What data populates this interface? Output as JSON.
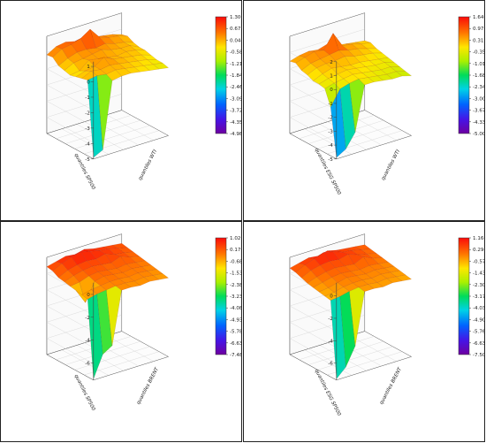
{
  "chart_data": [
    {
      "type": "surface3d",
      "x_label": "quantiles SP500",
      "y_label": "quantiles WTI",
      "z_ticks": [
        "1",
        "0",
        "-1",
        "-2",
        "-3",
        "-4",
        "-5"
      ],
      "z_min": -5,
      "z_max": 1.3,
      "colorbar_ticks": [
        "1.300",
        "0.6720",
        "0.04400",
        "-0.5840",
        "-1.212",
        "-1.840",
        "-2.468",
        "-3.096",
        "-3.724",
        "-4.352",
        "-4.980"
      ],
      "colorbar_min": -4.98,
      "colorbar_max": 1.3,
      "surface": [
        [
          0.1,
          0.45,
          0.55,
          0.4,
          0.5,
          0.3,
          0.2,
          0.1,
          -0.1
        ],
        [
          0.15,
          0.5,
          0.6,
          0.8,
          1.2,
          0.5,
          0.3,
          0.2,
          0.0
        ],
        [
          -0.2,
          0.1,
          0.3,
          0.3,
          0.2,
          0.3,
          0.1,
          0.0,
          -0.2
        ],
        [
          -0.3,
          0.0,
          0.1,
          0.2,
          0.3,
          0.1,
          0.0,
          0.0,
          -0.3
        ],
        [
          -0.4,
          -0.3,
          0.2,
          0.1,
          0.0,
          -0.1,
          0.0,
          -0.1,
          -0.3
        ],
        [
          -0.3,
          -0.1,
          0.0,
          0.4,
          0.1,
          0.0,
          -0.1,
          -0.2,
          -0.4
        ],
        [
          -0.2,
          0.1,
          0.0,
          0.1,
          0.0,
          -0.1,
          -0.2,
          -0.3,
          -0.5
        ],
        [
          -0.1,
          0.0,
          -0.1,
          0.0,
          -0.1,
          -0.2,
          -0.3,
          -0.4,
          -0.5
        ],
        [
          -4.9,
          -4.6,
          -0.3,
          -0.2,
          -0.2,
          -0.3,
          -0.4,
          -0.5,
          -0.6
        ]
      ]
    },
    {
      "type": "surface3d",
      "x_label": "quantiles ESG SP500",
      "y_label": "quantiles WTI",
      "z_ticks": [
        "2",
        "1",
        "0",
        "-1",
        "-2",
        "-3",
        "-4",
        "-5"
      ],
      "z_min": -5,
      "z_max": 2,
      "colorbar_ticks": [
        "1.640",
        "0.9760",
        "0.3120",
        "-0.3520",
        "-1.016",
        "-1.680",
        "-2.344",
        "-3.008",
        "-3.672",
        "-4.336",
        "-5.000"
      ],
      "colorbar_min": -5,
      "colorbar_max": 1.64,
      "surface": [
        [
          0.2,
          0.4,
          0.5,
          0.4,
          0.6,
          0.3,
          0.2,
          0.1,
          0.0
        ],
        [
          0.3,
          0.5,
          0.7,
          0.6,
          1.6,
          0.5,
          0.4,
          0.2,
          0.1
        ],
        [
          0.0,
          0.3,
          0.4,
          0.5,
          0.6,
          0.4,
          0.3,
          0.1,
          -0.1
        ],
        [
          -0.1,
          0.2,
          0.3,
          0.3,
          0.4,
          0.2,
          0.1,
          0.0,
          -0.2
        ],
        [
          -0.3,
          0.0,
          0.2,
          0.1,
          0.0,
          0.0,
          -0.1,
          -0.2,
          -0.3
        ],
        [
          -0.3,
          -0.1,
          0.0,
          0.1,
          0.0,
          -0.1,
          -0.2,
          -0.2,
          -0.4
        ],
        [
          -0.4,
          -0.2,
          -0.1,
          0.0,
          -0.1,
          -0.2,
          -0.3,
          -0.3,
          -0.5
        ],
        [
          -1.5,
          -0.4,
          -0.2,
          -0.1,
          -0.2,
          -0.3,
          -0.4,
          -0.4,
          -0.6
        ],
        [
          -4.9,
          -4.5,
          -3.5,
          -0.3,
          -0.3,
          -0.4,
          -0.5,
          -0.5,
          -0.7
        ]
      ]
    },
    {
      "type": "surface3d",
      "x_label": "quantiles SP500",
      "y_label": "quantiles BRENT",
      "z_ticks": [
        "0",
        "-2",
        "-4",
        "-6"
      ],
      "z_min": -7.5,
      "z_max": 1.02,
      "colorbar_ticks": [
        "1.020",
        "0.1700",
        "-0.6800",
        "-1.530",
        "-2.380",
        "-3.230",
        "-4.080",
        "-4.930",
        "-5.780",
        "-6.630",
        "-7.480"
      ],
      "colorbar_min": -7.48,
      "colorbar_max": 1.02,
      "surface": [
        [
          0.2,
          0.4,
          0.6,
          0.5,
          0.7,
          0.5,
          0.4,
          0.3,
          0.2
        ],
        [
          0.1,
          0.5,
          0.8,
          1.0,
          0.8,
          0.6,
          0.5,
          0.3,
          0.1
        ],
        [
          -0.2,
          0.2,
          0.4,
          0.5,
          0.4,
          0.6,
          0.3,
          0.2,
          0.0
        ],
        [
          -0.3,
          0.0,
          0.2,
          0.3,
          0.2,
          0.1,
          0.4,
          0.1,
          -0.1
        ],
        [
          -0.4,
          -0.3,
          0.0,
          0.1,
          0.0,
          -0.1,
          0.0,
          -0.1,
          -0.2
        ],
        [
          -0.5,
          -1.8,
          -0.2,
          0.0,
          -0.1,
          -0.2,
          -0.1,
          -0.2,
          -0.3
        ],
        [
          -0.6,
          -0.4,
          -0.3,
          -0.2,
          -0.2,
          -0.3,
          -0.2,
          -0.3,
          -0.4
        ],
        [
          -0.7,
          -0.5,
          -0.4,
          -0.3,
          -0.3,
          -0.4,
          -0.3,
          -0.4,
          -0.5
        ],
        [
          -7.4,
          -5.5,
          -5.0,
          -0.4,
          -0.4,
          -0.5,
          -0.4,
          -0.5,
          -0.6
        ]
      ]
    },
    {
      "type": "surface3d",
      "x_label": "quantiles ESG SP500",
      "y_label": "quantiles BRENT",
      "z_ticks": [
        "0",
        "-2",
        "-4",
        "-6"
      ],
      "z_min": -7.5,
      "z_max": 1.16,
      "colorbar_ticks": [
        "1.160",
        "0.2940",
        "-0.5720",
        "-1.438",
        "-2.304",
        "-3.170",
        "-4.036",
        "-4.902",
        "-5.768",
        "-6.634",
        "-7.500"
      ],
      "colorbar_min": -7.5,
      "colorbar_max": 1.16,
      "surface": [
        [
          0.2,
          0.4,
          0.6,
          0.5,
          0.7,
          0.5,
          0.4,
          0.3,
          0.2
        ],
        [
          0.1,
          0.5,
          0.8,
          1.1,
          0.9,
          0.6,
          0.5,
          0.3,
          0.1
        ],
        [
          -0.1,
          0.3,
          0.5,
          0.6,
          0.5,
          0.7,
          0.4,
          0.2,
          0.0
        ],
        [
          -0.3,
          0.0,
          0.2,
          0.3,
          0.2,
          0.1,
          0.5,
          0.1,
          -0.1
        ],
        [
          -0.4,
          -0.2,
          0.0,
          0.1,
          0.0,
          -0.1,
          0.0,
          -0.1,
          -0.2
        ],
        [
          -0.5,
          -0.4,
          -0.2,
          0.0,
          -0.1,
          -0.2,
          -0.1,
          -0.2,
          -0.3
        ],
        [
          -0.6,
          -0.5,
          -0.3,
          -0.2,
          -0.2,
          -0.3,
          -0.2,
          -0.3,
          -0.4
        ],
        [
          -0.7,
          -0.6,
          -0.4,
          -0.3,
          -0.3,
          -0.4,
          -0.3,
          -0.4,
          -0.5
        ],
        [
          -7.4,
          -6.6,
          -5.0,
          -0.4,
          -0.4,
          -0.5,
          -0.4,
          -0.5,
          -0.6
        ]
      ]
    }
  ]
}
